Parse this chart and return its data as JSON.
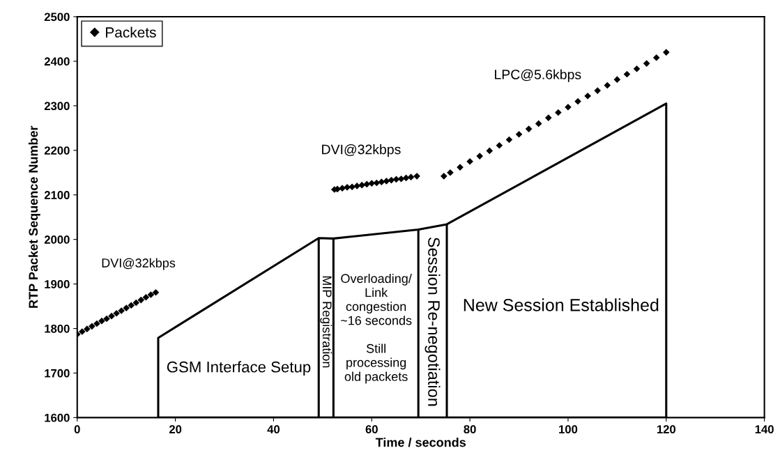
{
  "chart_data": {
    "type": "scatter",
    "xlabel": "Time / seconds",
    "ylabel": "RTP Packet Sequence Number",
    "xlim": [
      0,
      140
    ],
    "xticks": [
      0,
      20,
      40,
      60,
      80,
      100,
      120,
      140
    ],
    "ylim": [
      1600,
      2500
    ],
    "yticks": [
      1600,
      1700,
      1800,
      1900,
      2000,
      2100,
      2200,
      2300,
      2400,
      2500
    ],
    "grid": false,
    "legend": "top left",
    "marker": "diamond",
    "series": [
      {
        "name": "Packets",
        "color": "#000000",
        "x": [
          0,
          1,
          2,
          3,
          4,
          5,
          6,
          7,
          8,
          9,
          10,
          11,
          12,
          13,
          14,
          15,
          16,
          52.4,
          53,
          54,
          55,
          56,
          57,
          58,
          59,
          60,
          61,
          62,
          63,
          64,
          65,
          66,
          67,
          68,
          69.2,
          74.7,
          76,
          78,
          80,
          82,
          84,
          86,
          88,
          90,
          92,
          94,
          96,
          98,
          100,
          102,
          104,
          106,
          108,
          110,
          112,
          114,
          116,
          118,
          120
        ],
        "values": [
          1787,
          1793,
          1799,
          1805,
          1811,
          1817,
          1822,
          1828,
          1834,
          1840,
          1846,
          1852,
          1858,
          1864,
          1870,
          1876,
          1881,
          2112,
          2113,
          2115,
          2117,
          2118,
          2120,
          2122,
          2124,
          2126,
          2127,
          2129,
          2131,
          2133,
          2135,
          2136,
          2138,
          2140,
          2142,
          2142,
          2150,
          2162,
          2175,
          2187,
          2199,
          2211,
          2224,
          2236,
          2248,
          2260,
          2273,
          2285,
          2297,
          2310,
          2322,
          2334,
          2346,
          2359,
          2371,
          2383,
          2395,
          2408,
          2420
        ]
      },
      {
        "type": "area",
        "color": "#000000",
        "marker": "none",
        "x": [
          16.5,
          49.2,
          52.2,
          69.5,
          75.3,
          120
        ],
        "values": [
          1779,
          2003,
          2002,
          2022,
          2034,
          2305
        ],
        "errors": [
          null,
          [
            1600,
            2003
          ],
          [
            1600,
            2002
          ],
          [
            1600,
            2022
          ],
          [
            1600,
            2034
          ],
          null
        ]
      }
    ],
    "annotations": [
      "DVI@32kbps",
      "DVI@32kbps",
      "LPC@5.6kbps",
      "GSM Interface Setup",
      "MIP Registration",
      "Overloading/\nLink\ncongestion\n~16 seconds\n\nStill\nprocessing\nold packets",
      "Session Re-negotiation",
      "New Session Established"
    ]
  }
}
